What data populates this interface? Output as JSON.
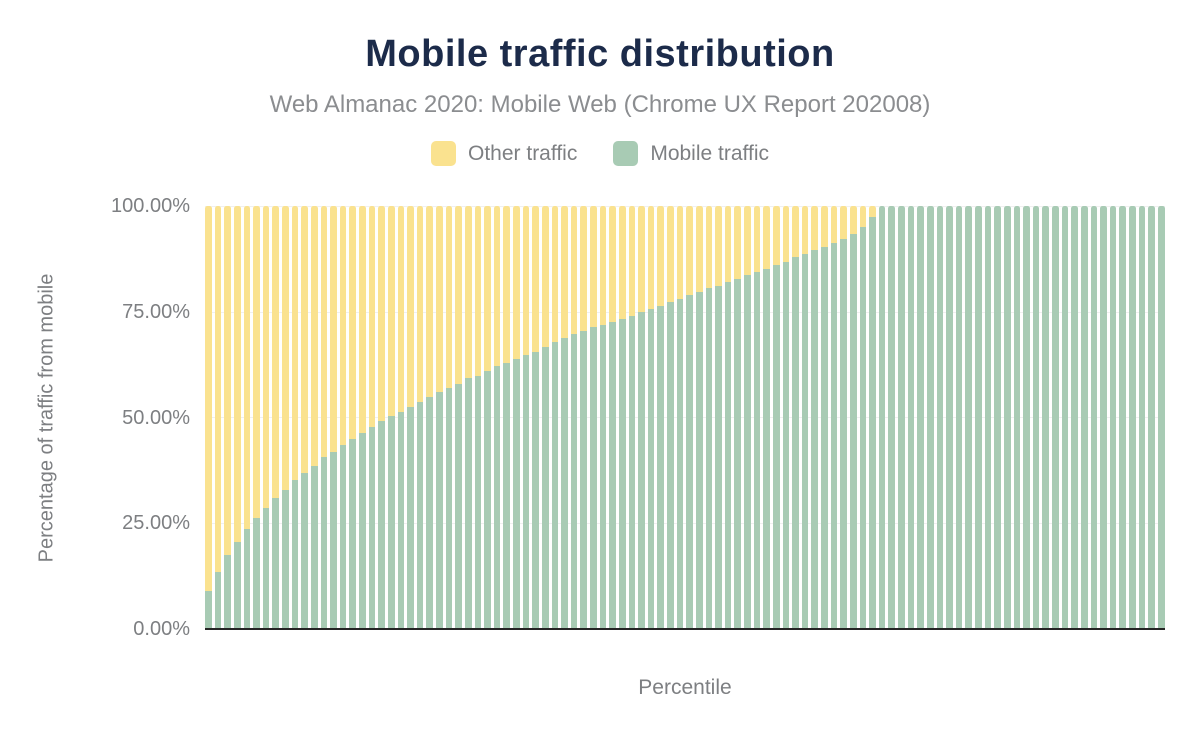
{
  "colors": {
    "title": "#1c2b4a",
    "subtitle_text": "#8b8d90",
    "axis_label_text": "#7d7f82",
    "gridline": "#f0f0f0",
    "axis_line": "#262626",
    "background": "#ffffff"
  },
  "chart_data": {
    "type": "bar",
    "stacked": true,
    "stacking": "percent",
    "title": "Mobile traffic distribution",
    "subtitle": "Web Almanac 2020: Mobile Web (Chrome UX Report 202008)",
    "xlabel": "Percentile",
    "ylabel": "Percentage of traffic from mobile",
    "ylim": [
      0,
      100
    ],
    "yticks_top_to_bottom": [
      "100.00%",
      "75.00%",
      "50.00%",
      "25.00%",
      "0.00%"
    ],
    "x_axis_tick_labels_visible": false,
    "x": {
      "start": 1,
      "end": 100,
      "count": 100
    },
    "legend_position": "top",
    "grid": "horizontal-only",
    "series": [
      {
        "name": "Other traffic",
        "color": "#fae28f",
        "values": [
          91.1,
          86.5,
          82.6,
          79.4,
          76.4,
          73.7,
          71.3,
          69.1,
          67.1,
          64.7,
          63.1,
          61.4,
          59.4,
          58.1,
          56.5,
          55.1,
          53.7,
          52.3,
          50.8,
          49.7,
          48.6,
          47.6,
          46.3,
          45.2,
          44.0,
          43.1,
          42.1,
          40.7,
          40.1,
          38.9,
          37.8,
          37.2,
          36.2,
          35.2,
          34.4,
          33.4,
          32.2,
          31.3,
          30.3,
          29.5,
          28.7,
          28.1,
          27.5,
          26.7,
          25.9,
          25.0,
          24.3,
          23.6,
          22.6,
          22.0,
          21.0,
          20.3,
          19.5,
          18.8,
          17.9,
          17.3,
          16.3,
          15.5,
          14.9,
          13.9,
          13.2,
          12.1,
          11.3,
          10.3,
          9.7,
          8.8,
          7.8,
          6.6,
          4.9,
          2.5,
          0,
          0,
          0,
          0,
          0,
          0,
          0,
          0,
          0,
          0,
          0,
          0,
          0,
          0,
          0,
          0,
          0,
          0,
          0,
          0,
          0,
          0,
          0,
          0,
          0,
          0,
          0,
          0,
          0,
          0
        ]
      },
      {
        "name": "Mobile traffic",
        "color": "#a8cbb4",
        "values": [
          8.9,
          13.5,
          17.4,
          20.6,
          23.6,
          26.3,
          28.7,
          30.9,
          32.9,
          35.3,
          36.9,
          38.6,
          40.6,
          41.9,
          43.5,
          44.9,
          46.3,
          47.7,
          49.2,
          50.3,
          51.4,
          52.4,
          53.7,
          54.8,
          56.0,
          56.9,
          57.9,
          59.3,
          59.9,
          61.1,
          62.2,
          62.8,
          63.8,
          64.8,
          65.6,
          66.6,
          67.8,
          68.7,
          69.7,
          70.5,
          71.3,
          71.9,
          72.5,
          73.3,
          74.1,
          75.0,
          75.7,
          76.4,
          77.4,
          78.0,
          79.0,
          79.7,
          80.5,
          81.2,
          82.1,
          82.7,
          83.7,
          84.5,
          85.1,
          86.1,
          86.8,
          87.9,
          88.7,
          89.7,
          90.3,
          91.2,
          92.2,
          93.4,
          95.1,
          97.5,
          100,
          100,
          100,
          100,
          100,
          100,
          100,
          100,
          100,
          100,
          100,
          100,
          100,
          100,
          100,
          100,
          100,
          100,
          100,
          100,
          100,
          100,
          100,
          100,
          100,
          100,
          100,
          100,
          100,
          100
        ]
      }
    ]
  }
}
